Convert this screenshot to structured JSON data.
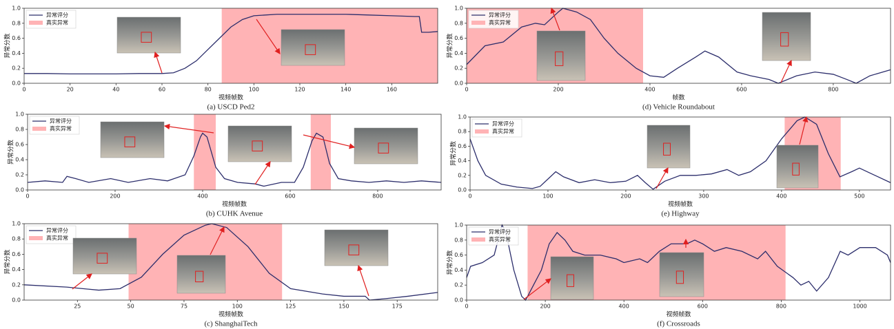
{
  "chart_data": [
    {
      "type": "line",
      "caption": "(a) USCD Ped2",
      "xlabel": "视频帧数",
      "ylabel": "异常分数",
      "legend": "upper left",
      "xlim": [
        0,
        180
      ],
      "ylim": [
        0,
        1
      ],
      "xticks": [
        0,
        20,
        40,
        60,
        80,
        100,
        120,
        140,
        160
      ],
      "yticks": [
        {
          "value": 0,
          "label": "0.0"
        },
        {
          "value": 0.2,
          "label": "0.2"
        },
        {
          "value": 0.4,
          "label": "0.4"
        },
        {
          "value": 0.6,
          "label": "0.6"
        },
        {
          "value": 0.8,
          "label": "0.8"
        },
        {
          "value": 1,
          "label": "1.0"
        }
      ],
      "x": [
        0,
        10,
        20,
        30,
        40,
        50,
        60,
        65,
        70,
        75,
        80,
        85,
        90,
        95,
        100,
        110,
        120,
        130,
        140,
        150,
        160,
        170,
        172,
        173,
        176,
        180
      ],
      "series": [
        {
          "name": "异常评分",
          "color": "#2b2d6b",
          "values": [
            0.13,
            0.13,
            0.125,
            0.125,
            0.125,
            0.13,
            0.13,
            0.14,
            0.2,
            0.3,
            0.45,
            0.6,
            0.75,
            0.85,
            0.9,
            0.92,
            0.92,
            0.92,
            0.92,
            0.91,
            0.9,
            0.89,
            0.89,
            0.68,
            0.68,
            0.69
          ]
        }
      ],
      "anomaly": {
        "name": "真实异常",
        "color": "#ffb3b5",
        "spans": [
          [
            86,
            180
          ]
        ]
      }
    },
    {
      "type": "line",
      "caption": "(d) Vehicle Roundabout",
      "xlabel": "帧数",
      "ylabel": "异常分数",
      "legend": "upper left",
      "xlim": [
        0,
        925
      ],
      "ylim": [
        0,
        1
      ],
      "xticks": [
        0,
        200,
        400,
        600,
        800
      ],
      "yticks": [
        {
          "value": 0,
          "label": "0.0"
        },
        {
          "value": 0.2,
          "label": "0.2"
        },
        {
          "value": 0.4,
          "label": "0.4"
        },
        {
          "value": 0.6,
          "label": "0.6"
        },
        {
          "value": 0.8,
          "label": "0.8"
        },
        {
          "value": 1,
          "label": "1.0"
        }
      ],
      "x": [
        0,
        40,
        80,
        120,
        150,
        170,
        200,
        210,
        240,
        270,
        300,
        330,
        370,
        400,
        430,
        460,
        500,
        520,
        550,
        590,
        620,
        660,
        680,
        720,
        760,
        800,
        830,
        850,
        880,
        925
      ],
      "series": [
        {
          "name": "异常评分",
          "color": "#2b2d6b",
          "values": [
            0.25,
            0.5,
            0.55,
            0.75,
            0.8,
            0.78,
            0.95,
            1.0,
            0.95,
            0.85,
            0.6,
            0.4,
            0.2,
            0.1,
            0.08,
            0.2,
            0.35,
            0.43,
            0.35,
            0.15,
            0.1,
            0.05,
            0.0,
            0.1,
            0.15,
            0.12,
            0.05,
            0.0,
            0.1,
            0.18
          ]
        }
      ],
      "anomaly": {
        "name": "真实异常",
        "color": "#ffb3b5",
        "spans": [
          [
            0,
            385
          ]
        ]
      }
    },
    {
      "type": "line",
      "caption": "(b) CUHK Avenue",
      "xlabel": "视频帧数",
      "ylabel": "异常分数",
      "legend": "upper left",
      "xlim": [
        0,
        945
      ],
      "ylim": [
        0,
        1
      ],
      "xticks": [
        0,
        200,
        400,
        600,
        800
      ],
      "yticks": [
        {
          "value": 0,
          "label": "0.0"
        },
        {
          "value": 0.2,
          "label": "0.2"
        },
        {
          "value": 0.4,
          "label": "0.4"
        },
        {
          "value": 0.6,
          "label": "0.6"
        },
        {
          "value": 0.8,
          "label": "0.8"
        },
        {
          "value": 1,
          "label": "1.0"
        }
      ],
      "x": [
        0,
        40,
        80,
        90,
        110,
        140,
        190,
        230,
        280,
        320,
        360,
        380,
        395,
        400,
        410,
        430,
        450,
        480,
        520,
        540,
        580,
        610,
        630,
        650,
        660,
        675,
        690,
        710,
        740,
        780,
        820,
        860,
        900,
        945
      ],
      "series": [
        {
          "name": "异常评分",
          "color": "#2b2d6b",
          "values": [
            0.1,
            0.12,
            0.1,
            0.18,
            0.15,
            0.1,
            0.15,
            0.1,
            0.15,
            0.12,
            0.2,
            0.45,
            0.7,
            0.75,
            0.7,
            0.3,
            0.15,
            0.1,
            0.08,
            0.05,
            0.1,
            0.1,
            0.3,
            0.65,
            0.75,
            0.7,
            0.35,
            0.15,
            0.12,
            0.1,
            0.12,
            0.1,
            0.12,
            0.1
          ]
        }
      ],
      "anomaly": {
        "name": "真实异常",
        "color": "#ffb3b5",
        "spans": [
          [
            380,
            430
          ],
          [
            647,
            693
          ]
        ]
      }
    },
    {
      "type": "line",
      "caption": "(e) Highway",
      "xlabel": "视频帧数",
      "ylabel": "异常分数",
      "legend": "upper left",
      "xlim": [
        0,
        540
      ],
      "ylim": [
        0,
        1
      ],
      "xticks": [
        0,
        100,
        200,
        300,
        400,
        500
      ],
      "yticks": [
        {
          "value": 0,
          "label": "0.0"
        },
        {
          "value": 0.2,
          "label": "0.2"
        },
        {
          "value": 0.4,
          "label": "0.4"
        },
        {
          "value": 0.6,
          "label": "0.6"
        },
        {
          "value": 0.8,
          "label": "0.8"
        },
        {
          "value": 1,
          "label": "1.0"
        }
      ],
      "x": [
        0,
        10,
        20,
        40,
        60,
        80,
        90,
        100,
        110,
        120,
        140,
        160,
        180,
        200,
        215,
        225,
        235,
        250,
        270,
        290,
        310,
        330,
        345,
        360,
        380,
        400,
        420,
        430,
        445,
        460,
        475,
        490,
        500,
        520,
        540
      ],
      "series": [
        {
          "name": "异常评分",
          "color": "#2b2d6b",
          "values": [
            0.7,
            0.4,
            0.2,
            0.08,
            0.04,
            0.02,
            0.05,
            0.15,
            0.25,
            0.18,
            0.1,
            0.14,
            0.1,
            0.12,
            0.2,
            0.1,
            0.01,
            0.12,
            0.2,
            0.2,
            0.22,
            0.28,
            0.2,
            0.25,
            0.4,
            0.7,
            0.95,
            1.0,
            0.9,
            0.5,
            0.18,
            0.25,
            0.3,
            0.2,
            0.1
          ]
        }
      ],
      "anomaly": {
        "name": "真实异常",
        "color": "#ffb3b5",
        "spans": [
          [
            404,
            476
          ]
        ]
      }
    },
    {
      "type": "line",
      "caption": "(c) ShanghaiTech",
      "xlabel": "视频帧数",
      "ylabel": "异常分数",
      "legend": "upper left",
      "xlim": [
        0,
        194
      ],
      "ylim": [
        0,
        1
      ],
      "xticks": [
        25,
        50,
        75,
        100,
        125,
        150,
        175
      ],
      "yticks": [
        {
          "value": 0,
          "label": "0.0"
        },
        {
          "value": 0.2,
          "label": "0.2"
        },
        {
          "value": 0.4,
          "label": "0.4"
        },
        {
          "value": 0.6,
          "label": "0.6"
        },
        {
          "value": 0.8,
          "label": "0.8"
        },
        {
          "value": 1,
          "label": "1.0"
        }
      ],
      "x": [
        0,
        20,
        35,
        45,
        55,
        65,
        75,
        85,
        88,
        95,
        105,
        115,
        125,
        140,
        150,
        160,
        162,
        170,
        180,
        194
      ],
      "series": [
        {
          "name": "异常评分",
          "color": "#2b2d6b",
          "values": [
            0.2,
            0.17,
            0.13,
            0.15,
            0.3,
            0.6,
            0.85,
            0.98,
            1.0,
            0.95,
            0.7,
            0.35,
            0.15,
            0.08,
            0.05,
            0.05,
            0.0,
            0.02,
            0.05,
            0.1
          ]
        }
      ],
      "anomaly": {
        "name": "真实异常",
        "color": "#ffb3b5",
        "spans": [
          [
            49,
            121
          ]
        ]
      }
    },
    {
      "type": "line",
      "caption": "(f) Crossroads",
      "xlabel": "视频帧数",
      "ylabel": "异常分数",
      "legend": "upper left",
      "xlim": [
        0,
        1078
      ],
      "ylim": [
        0,
        1
      ],
      "xticks": [
        0,
        200,
        400,
        600,
        800,
        1000
      ],
      "yticks": [
        {
          "value": 0,
          "label": "0.0"
        },
        {
          "value": 0.2,
          "label": "0.2"
        },
        {
          "value": 0.4,
          "label": "0.4"
        },
        {
          "value": 0.6,
          "label": "0.6"
        },
        {
          "value": 0.8,
          "label": "0.8"
        },
        {
          "value": 1,
          "label": "1.0"
        }
      ],
      "x": [
        0,
        10,
        40,
        70,
        90,
        100,
        120,
        140,
        150,
        170,
        190,
        210,
        230,
        250,
        270,
        300,
        340,
        380,
        400,
        440,
        460,
        490,
        520,
        560,
        580,
        600,
        630,
        660,
        700,
        740,
        760,
        790,
        830,
        850,
        870,
        890,
        920,
        950,
        970,
        1000,
        1040,
        1070,
        1078
      ],
      "series": [
        {
          "name": "异常评分",
          "color": "#2b2d6b",
          "values": [
            0.3,
            0.45,
            0.5,
            0.6,
            1.0,
            0.9,
            0.4,
            0.05,
            0.0,
            0.2,
            0.4,
            0.75,
            0.9,
            0.8,
            0.65,
            0.6,
            0.6,
            0.55,
            0.5,
            0.55,
            0.5,
            0.65,
            0.75,
            0.75,
            0.8,
            0.75,
            0.65,
            0.7,
            0.65,
            0.55,
            0.65,
            0.45,
            0.3,
            0.2,
            0.25,
            0.12,
            0.3,
            0.65,
            0.6,
            0.7,
            0.7,
            0.6,
            0.5
          ]
        }
      ],
      "anomaly": {
        "name": "真实异常",
        "color": "#ffb3b5",
        "spans": [
          [
            155,
            811
          ]
        ]
      }
    }
  ]
}
